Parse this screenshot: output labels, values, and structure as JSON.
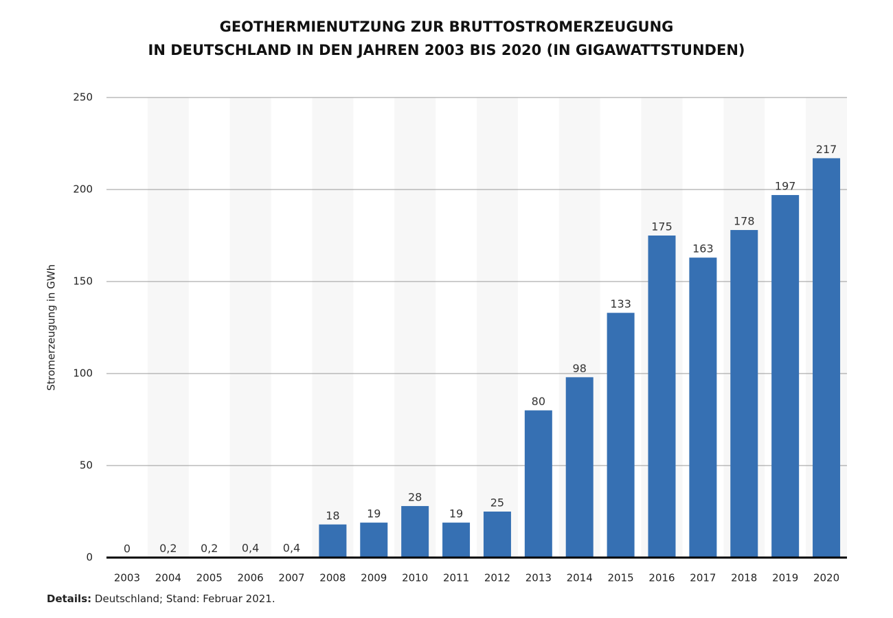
{
  "chart_data": {
    "type": "bar",
    "title": [
      "GEOTHERMIENUTZUNG ZUR BRUTTOSTROMERZEUGUNG",
      "IN DEUTSCHLAND IN DEN JAHREN 2003 BIS 2020 (IN GIGAWATTSTUNDEN)"
    ],
    "y_label": "Stromerzeugung in GWh",
    "categories": [
      "2003",
      "2004",
      "2005",
      "2006",
      "2007",
      "2008",
      "2009",
      "2010",
      "2011",
      "2012",
      "2013",
      "2014",
      "2015",
      "2016",
      "2017",
      "2018",
      "2019",
      "2020"
    ],
    "values": [
      0,
      0.2,
      0.2,
      0.4,
      0.4,
      18,
      19,
      28,
      19,
      25,
      80,
      98,
      133,
      175,
      163,
      178,
      197,
      217
    ],
    "value_labels": [
      "0",
      "0,2",
      "0,2",
      "0,4",
      "0,4",
      "18",
      "19",
      "28",
      "19",
      "25",
      "80",
      "98",
      "133",
      "175",
      "163",
      "178",
      "197",
      "217"
    ],
    "color": "#3670b3",
    "ylim": [
      0,
      250
    ],
    "yticks": [
      0,
      50,
      100,
      150,
      200,
      250
    ],
    "grid": true,
    "notes": {
      "label": "Details:",
      "text": "Deutschland; Stand: Februar 2021."
    }
  }
}
